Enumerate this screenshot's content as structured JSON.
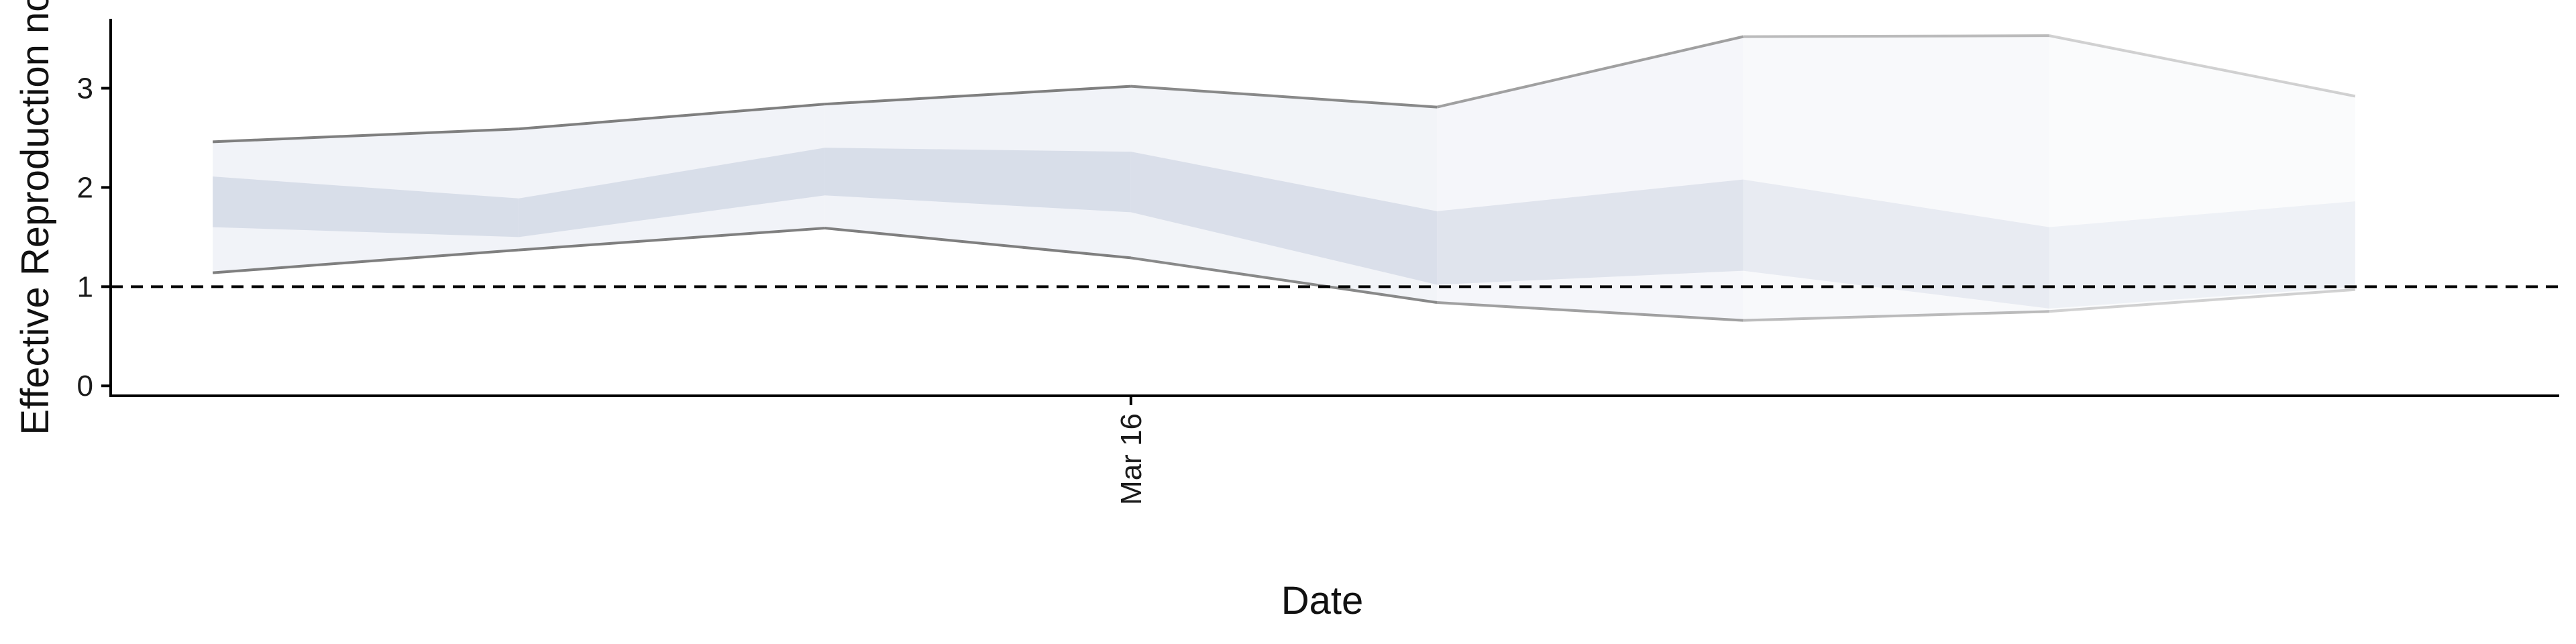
{
  "chart_data": {
    "type": "area",
    "title": "",
    "xlabel": "Date",
    "ylabel": "Effective Reproduction no.",
    "x": [
      "2020-03-07",
      "2020-03-10",
      "2020-03-13",
      "2020-03-16",
      "2020-03-19",
      "2020-03-22",
      "2020-03-25",
      "2020-03-28"
    ],
    "x_tick_labels": [
      {
        "date": "2020-03-16",
        "label": "Mar 16"
      }
    ],
    "xlim": [
      "2020-03-06",
      "2020-03-30"
    ],
    "ylim": [
      -0.1,
      3.7
    ],
    "y_ticks": [
      0,
      1,
      2,
      3
    ],
    "reference_line": {
      "y": 1,
      "style": "dashed",
      "color": "#000000"
    },
    "grid": false,
    "series": [
      {
        "band": "outer",
        "lower": [
          1.14,
          1.37,
          1.59,
          1.29,
          0.84,
          0.66,
          0.75,
          0.97
        ],
        "upper": [
          2.46,
          2.59,
          2.84,
          3.02,
          2.81,
          3.52,
          3.53,
          2.92
        ],
        "fill_color": "#eceef5",
        "line_color": "#7f7f7f"
      },
      {
        "band": "inner",
        "lower": [
          1.6,
          1.5,
          1.92,
          1.75,
          1.02,
          1.16,
          0.78,
          1.0
        ],
        "upper": [
          2.11,
          1.89,
          2.4,
          2.36,
          1.76,
          2.08,
          1.6,
          1.86
        ],
        "fill_color": "#d4d9e6"
      }
    ],
    "fade": [
      1.0,
      1.0,
      1.0,
      1.0,
      0.85,
      0.62,
      0.42,
      0.28
    ]
  }
}
